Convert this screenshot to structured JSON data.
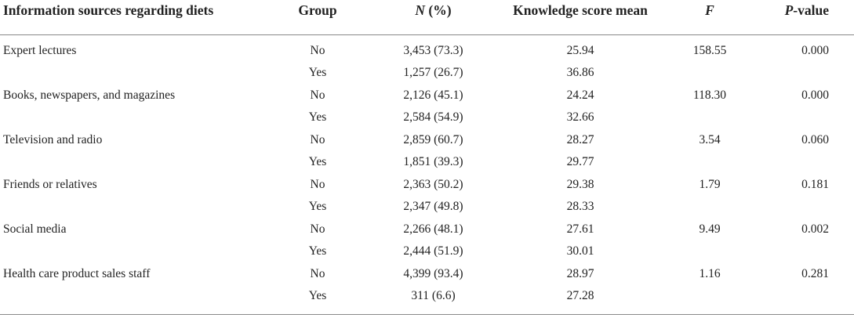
{
  "headers": {
    "source": "Information sources regarding diets",
    "group": "Group",
    "n_italic": "N",
    "n_rest": " (%)",
    "knowledge": "Knowledge score mean",
    "f": "F",
    "p_italic": "P",
    "p_rest": "-value"
  },
  "rows": [
    {
      "source": "Expert lectures",
      "group": "No",
      "n": "3,453 (73.3)",
      "knowledge": "25.94",
      "f": "158.55",
      "p": "0.000"
    },
    {
      "source": "",
      "group": "Yes",
      "n": "1,257 (26.7)",
      "knowledge": "36.86",
      "f": "",
      "p": ""
    },
    {
      "source": "Books, newspapers, and magazines",
      "group": "No",
      "n": "2,126 (45.1)",
      "knowledge": "24.24",
      "f": "118.30",
      "p": "0.000"
    },
    {
      "source": "",
      "group": "Yes",
      "n": "2,584 (54.9)",
      "knowledge": "32.66",
      "f": "",
      "p": ""
    },
    {
      "source": "Television and radio",
      "group": "No",
      "n": "2,859 (60.7)",
      "knowledge": "28.27",
      "f": "3.54",
      "p": "0.060"
    },
    {
      "source": "",
      "group": "Yes",
      "n": "1,851 (39.3)",
      "knowledge": "29.77",
      "f": "",
      "p": ""
    },
    {
      "source": "Friends or relatives",
      "group": "No",
      "n": "2,363 (50.2)",
      "knowledge": "29.38",
      "f": "1.79",
      "p": "0.181"
    },
    {
      "source": "",
      "group": "Yes",
      "n": "2,347 (49.8)",
      "knowledge": "28.33",
      "f": "",
      "p": ""
    },
    {
      "source": "Social media",
      "group": "No",
      "n": "2,266 (48.1)",
      "knowledge": "27.61",
      "f": "9.49",
      "p": "0.002"
    },
    {
      "source": "",
      "group": "Yes",
      "n": "2,444 (51.9)",
      "knowledge": "30.01",
      "f": "",
      "p": ""
    },
    {
      "source": "Health care product sales staff",
      "group": "No",
      "n": "4,399 (93.4)",
      "knowledge": "28.97",
      "f": "1.16",
      "p": "0.281"
    },
    {
      "source": "",
      "group": "Yes",
      "n": "311 (6.6)",
      "knowledge": "27.28",
      "f": "",
      "p": ""
    }
  ]
}
